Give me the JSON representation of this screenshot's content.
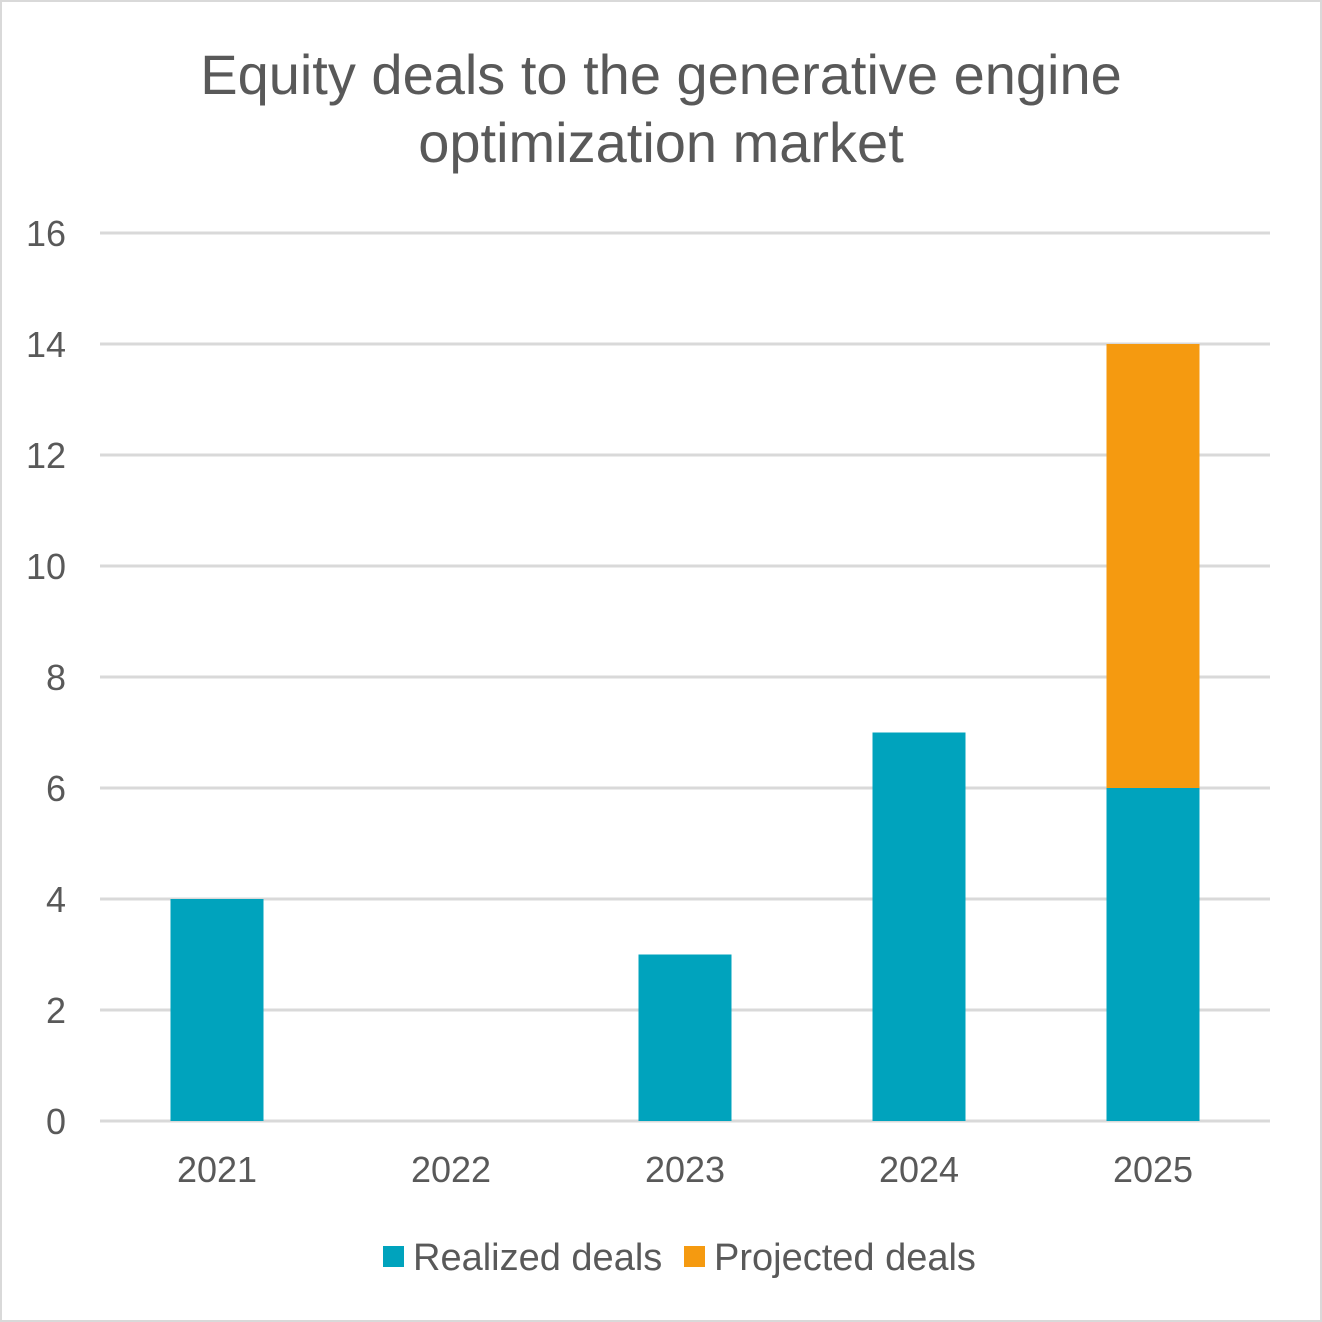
{
  "chart_data": {
    "type": "bar",
    "stacked": true,
    "title_lines": [
      "Equity deals to the generative engine",
      "optimization market"
    ],
    "xlabel": "",
    "ylabel": "",
    "categories": [
      "2021",
      "2022",
      "2023",
      "2024",
      "2025"
    ],
    "series": [
      {
        "name": "Realized deals",
        "color": "#00a3bd",
        "values": [
          4,
          0,
          3,
          7,
          6
        ]
      },
      {
        "name": "Projected deals",
        "color": "#f59a10",
        "values": [
          0,
          0,
          0,
          0,
          8
        ]
      }
    ],
    "ylim": [
      0,
      16
    ],
    "yticks": [
      "0",
      "2",
      "4",
      "6",
      "8",
      "10",
      "12",
      "14",
      "16"
    ],
    "grid": true,
    "legend_position": "bottom"
  }
}
